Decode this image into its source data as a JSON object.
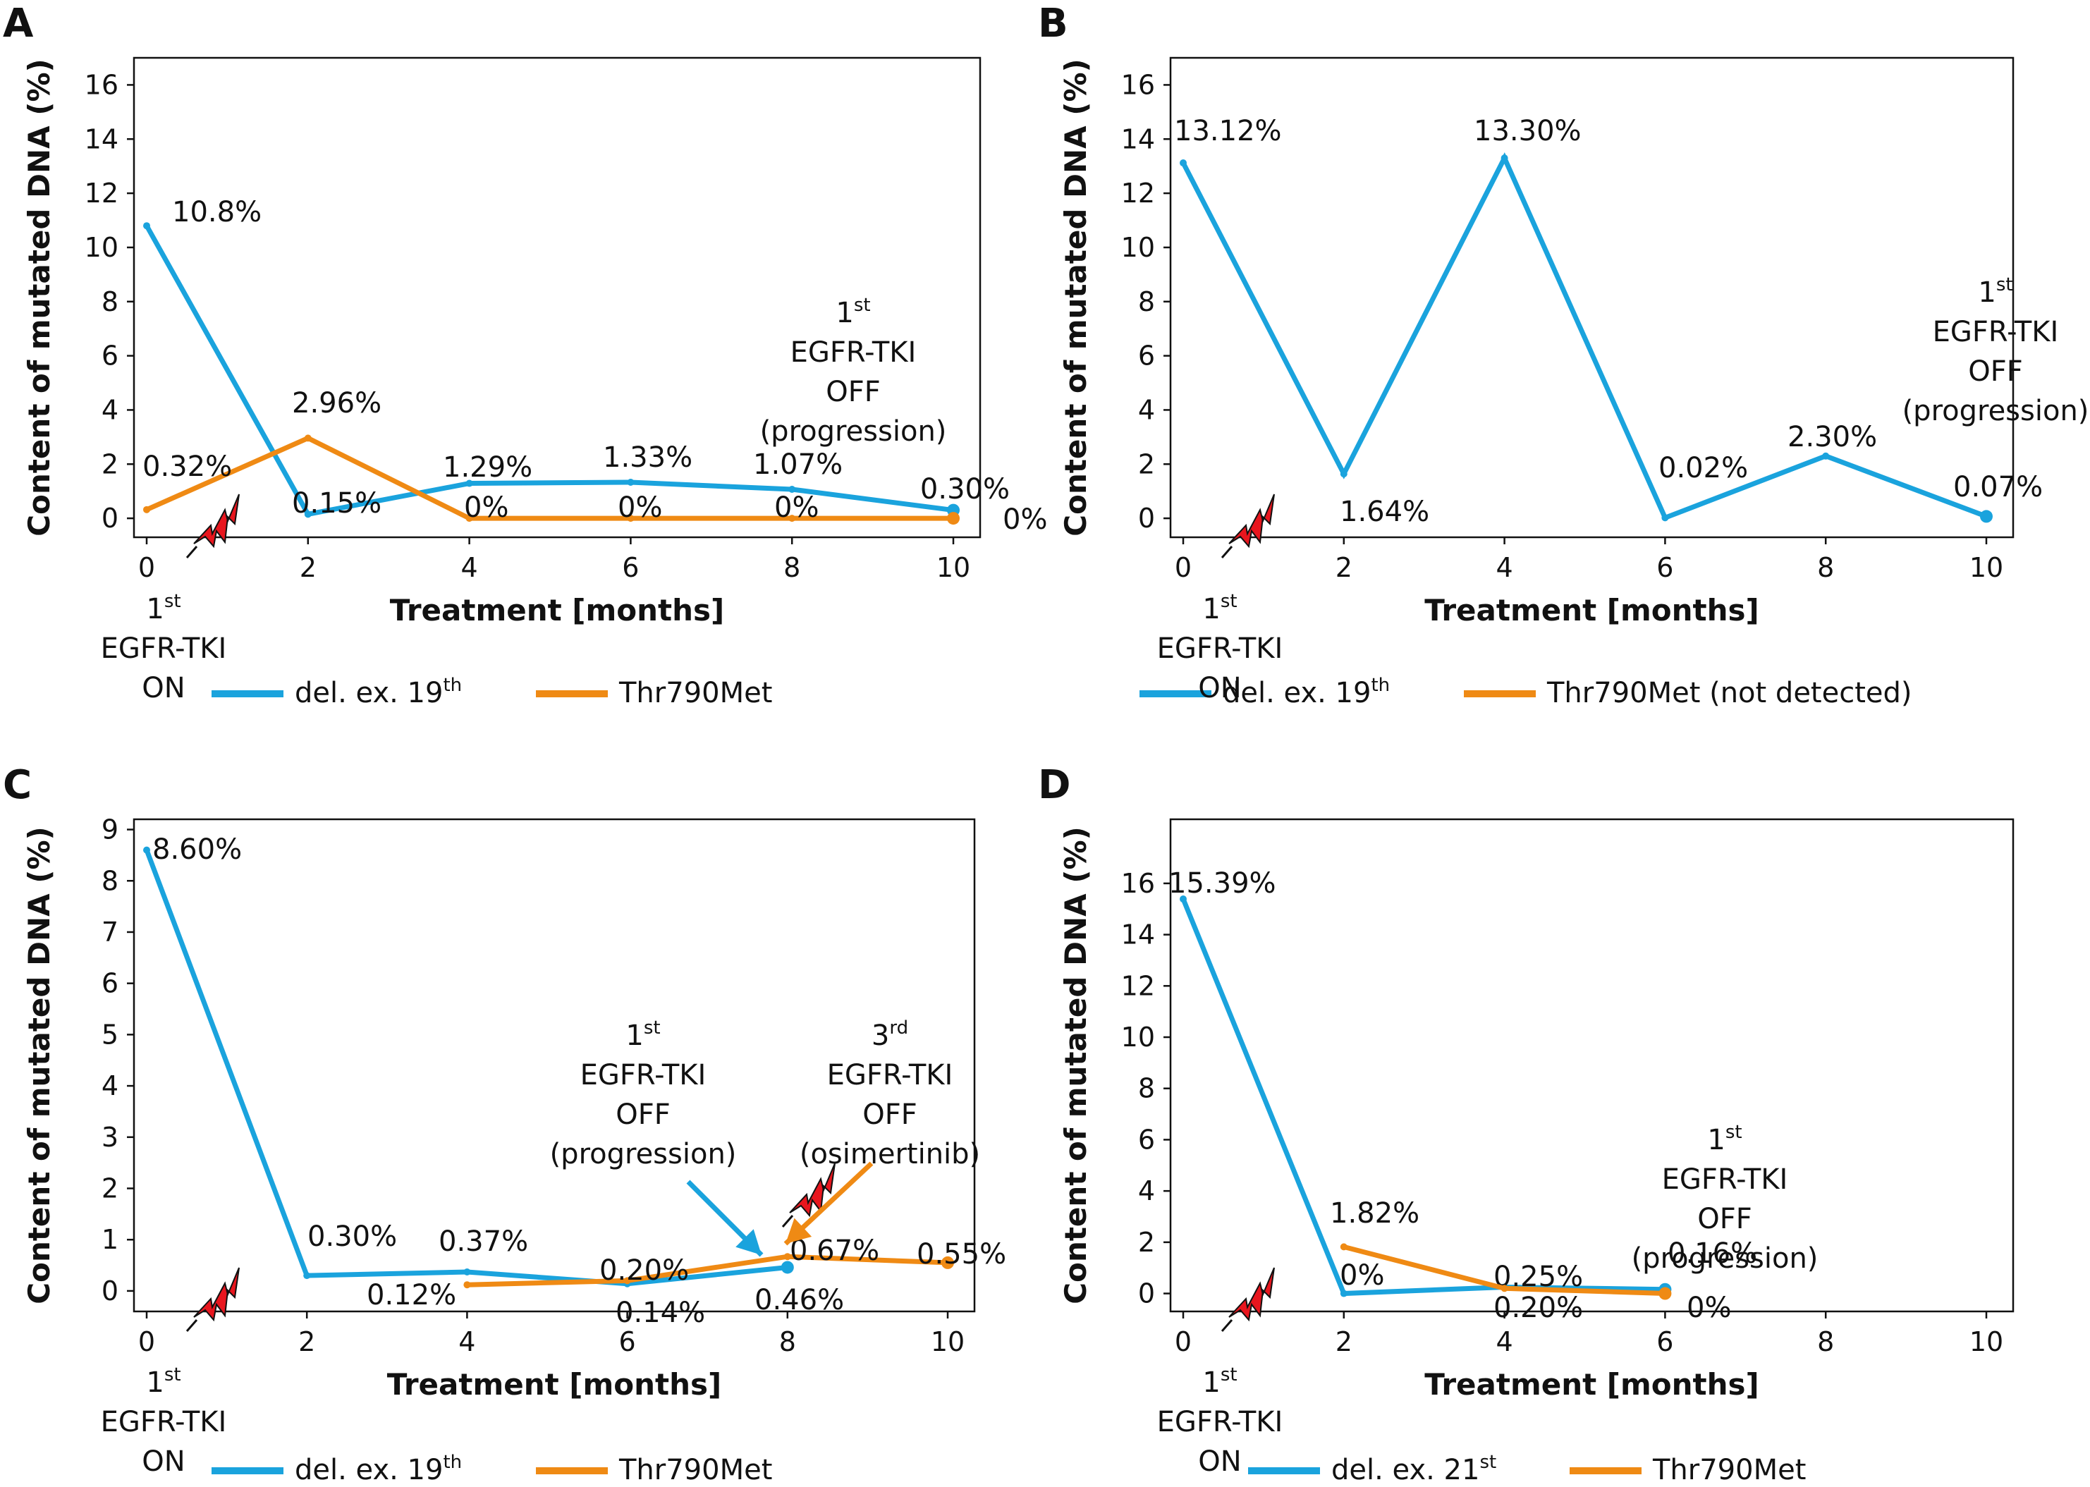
{
  "colors": {
    "blue": "#1aa3dd",
    "orange": "#ef8a14",
    "bolt": "#e8161e",
    "frame": "#111111"
  },
  "chart_data": [
    {
      "panel": "A",
      "type": "line",
      "xlabel": "Treatment [months]",
      "ylabel": "Content of mutated DNA (%)",
      "xlim": [
        0,
        10
      ],
      "ylim": [
        -0.7,
        17
      ],
      "x_ticks": [
        0,
        2,
        4,
        6,
        8,
        10
      ],
      "y_ticks": [
        0,
        2,
        4,
        6,
        8,
        10,
        12,
        14,
        16
      ],
      "series": [
        {
          "name": "del. ex. 19",
          "name_sup": "th",
          "color": "blue",
          "x": [
            0,
            2,
            4,
            6,
            8,
            10
          ],
          "y": [
            10.8,
            0.15,
            1.29,
            1.33,
            1.07,
            0.3
          ],
          "labels": [
            "10.8%",
            "0.15%",
            "1.29%",
            "1.33%",
            "1.07%",
            "0.30%"
          ]
        },
        {
          "name": "Thr790Met",
          "name_sup": "",
          "color": "orange",
          "x": [
            0,
            2,
            4,
            6,
            8,
            10
          ],
          "y": [
            0.32,
            2.96,
            0,
            0,
            0,
            0
          ],
          "labels": [
            "0.32%",
            "2.96%",
            "0%",
            "0%",
            "0%",
            "0%"
          ]
        }
      ],
      "annotations": [
        {
          "lines": [
            "1",
            "EGFR-TKI",
            "OFF",
            "(progression)"
          ],
          "sup": "st"
        },
        {
          "lines": [
            "1",
            "EGFR-TKI",
            "ON"
          ],
          "sup": "st"
        }
      ]
    },
    {
      "panel": "B",
      "type": "line",
      "xlabel": "Treatment [months]",
      "ylabel": "Content of mutated DNA (%)",
      "xlim": [
        0,
        10
      ],
      "ylim": [
        -0.7,
        17
      ],
      "x_ticks": [
        0,
        2,
        4,
        6,
        8,
        10
      ],
      "y_ticks": [
        0,
        2,
        4,
        6,
        8,
        10,
        12,
        14,
        16
      ],
      "series": [
        {
          "name": "del. ex. 19",
          "name_sup": "th",
          "color": "blue",
          "x": [
            0,
            2,
            4,
            6,
            8,
            10
          ],
          "y": [
            13.12,
            1.64,
            13.3,
            0.02,
            2.3,
            0.07
          ],
          "labels": [
            "13.12%",
            "1.64%",
            "13.30%",
            "0.02%",
            "2.30%",
            "0.07%"
          ]
        },
        {
          "name": "Thr790Met (not detected)",
          "name_sup": "",
          "color": "orange",
          "x": [],
          "y": [],
          "labels": []
        }
      ],
      "annotations": [
        {
          "lines": [
            "1",
            "EGFR-TKI",
            "OFF",
            "(progression)"
          ],
          "sup": "st"
        },
        {
          "lines": [
            "1",
            "EGFR-TKI",
            "ON"
          ],
          "sup": "st"
        }
      ]
    },
    {
      "panel": "C",
      "type": "line",
      "xlabel": "Treatment [months]",
      "ylabel": "Content of mutated DNA (%)",
      "xlim": [
        0,
        10
      ],
      "ylim": [
        -0.4,
        9.2
      ],
      "x_ticks": [
        0,
        2,
        4,
        6,
        8,
        10
      ],
      "y_ticks": [
        0,
        1,
        2,
        3,
        4,
        5,
        6,
        7,
        8,
        9
      ],
      "series": [
        {
          "name": "del. ex. 19",
          "name_sup": "th",
          "color": "blue",
          "x": [
            0,
            2,
            4,
            6,
            8
          ],
          "y": [
            8.6,
            0.3,
            0.37,
            0.14,
            0.46
          ],
          "labels": [
            "8.60%",
            "0.30%",
            "0.37%",
            "0.14%",
            "0.46%"
          ]
        },
        {
          "name": "Thr790Met",
          "name_sup": "",
          "color": "orange",
          "x": [
            4,
            6,
            8,
            10
          ],
          "y": [
            0.12,
            0.2,
            0.67,
            0.55
          ],
          "labels": [
            "0.12%",
            "0.20%",
            "0.67%",
            "0.55%"
          ]
        }
      ],
      "annotations": [
        {
          "lines": [
            "1",
            "EGFR-TKI",
            "OFF",
            "(progression)"
          ],
          "sup": "st"
        },
        {
          "lines": [
            "3",
            "EGFR-TKI",
            "OFF",
            "(osimertinib)"
          ],
          "sup": "rd"
        },
        {
          "lines": [
            "1",
            "EGFR-TKI",
            "ON"
          ],
          "sup": "st"
        }
      ]
    },
    {
      "panel": "D",
      "type": "line",
      "xlabel": "Treatment [months]",
      "ylabel": "Content of mutated DNA (%)",
      "xlim": [
        0,
        10
      ],
      "ylim": [
        -0.7,
        18.5
      ],
      "x_ticks": [
        0,
        2,
        4,
        6,
        8,
        10
      ],
      "y_ticks": [
        0,
        2,
        4,
        6,
        8,
        10,
        12,
        14,
        16
      ],
      "series": [
        {
          "name": "del. ex. 21",
          "name_sup": "st",
          "color": "blue",
          "x": [
            0,
            2,
            4,
            6
          ],
          "y": [
            15.39,
            0,
            0.25,
            0.16
          ],
          "labels": [
            "15.39%",
            "0%",
            "0.25%",
            "0.16%"
          ]
        },
        {
          "name": "Thr790Met",
          "name_sup": "",
          "color": "orange",
          "x": [
            2,
            4,
            6
          ],
          "y": [
            1.82,
            0.2,
            0
          ],
          "labels": [
            "1.82%",
            "0.20%",
            "0%"
          ]
        }
      ],
      "annotations": [
        {
          "lines": [
            "1",
            "EGFR-TKI",
            "OFF",
            "(progression)"
          ],
          "sup": "st"
        },
        {
          "lines": [
            "1",
            "EGFR-TKI",
            "ON"
          ],
          "sup": "st"
        }
      ]
    }
  ]
}
